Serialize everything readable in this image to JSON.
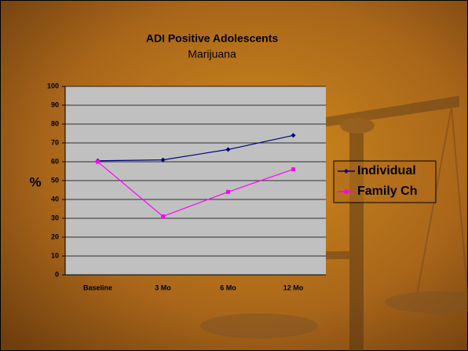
{
  "chart_data": {
    "type": "line",
    "title": "ADI Positive Adolescents",
    "subtitle": "Marijuana",
    "y_label": "%",
    "categories": [
      "Baseline",
      "3 Mo",
      "6 Mo",
      "12 Mo"
    ],
    "series": [
      {
        "name": "Individual",
        "color": "#000080",
        "marker": "diamond",
        "values": [
          60.5,
          61,
          66.5,
          74
        ]
      },
      {
        "name": "Family Ch",
        "color": "#ff00ff",
        "marker": "square",
        "values": [
          60,
          31,
          44,
          56
        ]
      }
    ],
    "ylim": [
      0,
      100
    ],
    "yticks": [
      0,
      10,
      20,
      30,
      40,
      50,
      60,
      70,
      80,
      90,
      100
    ],
    "grid": true,
    "legend": "right"
  }
}
